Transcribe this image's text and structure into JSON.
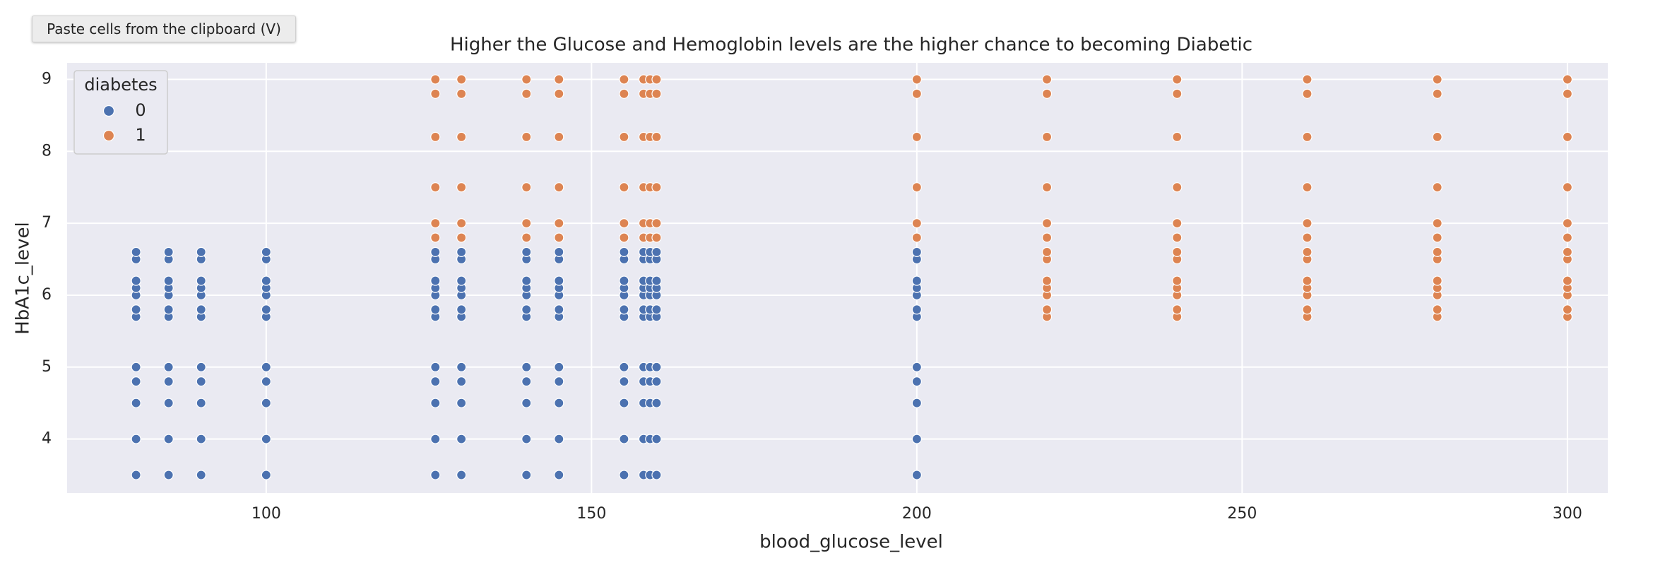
{
  "toolbar": {
    "button": "Paste cells from the clipboard (V)"
  },
  "chart_data": {
    "type": "scatter",
    "title": "Higher the Glucose and Hemoglobin levels are the higher chance to becoming Diabetic",
    "x_label": "blood_glucose_level",
    "y_label": "HbA1c_level",
    "legend_title": "diabetes",
    "legend_position": "upper-left",
    "grid": true,
    "xlim": [
      69.4,
      306.2
    ],
    "ylim": [
      3.25,
      9.23
    ],
    "xticks": [
      100,
      150,
      200,
      250,
      300
    ],
    "yticks": [
      4,
      5,
      6,
      7,
      8,
      9
    ],
    "series": [
      {
        "name": "0",
        "color": "#4c72b0",
        "x": [
          80,
          80,
          80,
          80,
          80,
          80,
          80,
          80,
          80,
          80,
          80,
          80,
          85,
          85,
          85,
          85,
          85,
          85,
          85,
          85,
          85,
          85,
          85,
          85,
          90,
          90,
          90,
          90,
          90,
          90,
          90,
          90,
          90,
          90,
          90,
          90,
          100,
          100,
          100,
          100,
          100,
          100,
          100,
          100,
          100,
          100,
          100,
          100,
          126,
          126,
          126,
          126,
          126,
          126,
          126,
          126,
          126,
          126,
          126,
          126,
          130,
          130,
          130,
          130,
          130,
          130,
          130,
          130,
          130,
          130,
          130,
          130,
          140,
          140,
          140,
          140,
          140,
          140,
          140,
          140,
          140,
          140,
          140,
          140,
          145,
          145,
          145,
          145,
          145,
          145,
          145,
          145,
          145,
          145,
          145,
          145,
          155,
          155,
          155,
          155,
          155,
          155,
          155,
          155,
          155,
          155,
          155,
          155,
          158,
          158,
          158,
          158,
          158,
          158,
          158,
          158,
          158,
          158,
          158,
          158,
          159,
          159,
          159,
          159,
          159,
          159,
          159,
          159,
          159,
          159,
          159,
          159,
          160,
          160,
          160,
          160,
          160,
          160,
          160,
          160,
          160,
          160,
          160,
          160,
          200,
          200,
          200,
          200,
          200,
          200,
          200,
          200,
          200,
          200,
          200,
          200
        ],
        "values": [
          3.5,
          4,
          4.5,
          4.8,
          5,
          5.7,
          5.8,
          6,
          6.1,
          6.2,
          6.5,
          6.6,
          3.5,
          4,
          4.5,
          4.8,
          5,
          5.7,
          5.8,
          6,
          6.1,
          6.2,
          6.5,
          6.6,
          3.5,
          4,
          4.5,
          4.8,
          5,
          5.7,
          5.8,
          6,
          6.1,
          6.2,
          6.5,
          6.6,
          3.5,
          4,
          4.5,
          4.8,
          5,
          5.7,
          5.8,
          6,
          6.1,
          6.2,
          6.5,
          6.6,
          3.5,
          4,
          4.5,
          4.8,
          5,
          5.7,
          5.8,
          6,
          6.1,
          6.2,
          6.5,
          6.6,
          3.5,
          4,
          4.5,
          4.8,
          5,
          5.7,
          5.8,
          6,
          6.1,
          6.2,
          6.5,
          6.6,
          3.5,
          4,
          4.5,
          4.8,
          5,
          5.7,
          5.8,
          6,
          6.1,
          6.2,
          6.5,
          6.6,
          3.5,
          4,
          4.5,
          4.8,
          5,
          5.7,
          5.8,
          6,
          6.1,
          6.2,
          6.5,
          6.6,
          3.5,
          4,
          4.5,
          4.8,
          5,
          5.7,
          5.8,
          6,
          6.1,
          6.2,
          6.5,
          6.6,
          3.5,
          4,
          4.5,
          4.8,
          5,
          5.7,
          5.8,
          6,
          6.1,
          6.2,
          6.5,
          6.6,
          3.5,
          4,
          4.5,
          4.8,
          5,
          5.7,
          5.8,
          6,
          6.1,
          6.2,
          6.5,
          6.6,
          3.5,
          4,
          4.5,
          4.8,
          5,
          5.7,
          5.8,
          6,
          6.1,
          6.2,
          6.5,
          6.6,
          3.5,
          4,
          4.5,
          4.8,
          5,
          5.7,
          5.8,
          6,
          6.1,
          6.2,
          6.5,
          6.6
        ]
      },
      {
        "name": "1",
        "color": "#dd8452",
        "x": [
          126,
          126,
          126,
          126,
          126,
          126,
          130,
          130,
          130,
          130,
          130,
          130,
          140,
          140,
          140,
          140,
          140,
          140,
          145,
          145,
          145,
          145,
          145,
          145,
          155,
          155,
          155,
          155,
          155,
          155,
          158,
          158,
          158,
          158,
          158,
          158,
          159,
          159,
          159,
          159,
          159,
          159,
          160,
          160,
          160,
          160,
          160,
          160,
          200,
          200,
          200,
          200,
          200,
          200,
          220,
          220,
          220,
          220,
          220,
          220,
          220,
          220,
          220,
          220,
          220,
          220,
          220,
          240,
          240,
          240,
          240,
          240,
          240,
          240,
          240,
          240,
          240,
          240,
          240,
          240,
          260,
          260,
          260,
          260,
          260,
          260,
          260,
          260,
          260,
          260,
          260,
          260,
          260,
          280,
          280,
          280,
          280,
          280,
          280,
          280,
          280,
          280,
          280,
          280,
          280,
          280,
          300,
          300,
          300,
          300,
          300,
          300,
          300,
          300,
          300,
          300,
          300,
          300,
          300
        ],
        "values": [
          6.8,
          7,
          7.5,
          8.2,
          8.8,
          9,
          6.8,
          7,
          7.5,
          8.2,
          8.8,
          9,
          6.8,
          7,
          7.5,
          8.2,
          8.8,
          9,
          6.8,
          7,
          7.5,
          8.2,
          8.8,
          9,
          6.8,
          7,
          7.5,
          8.2,
          8.8,
          9,
          6.8,
          7,
          7.5,
          8.2,
          8.8,
          9,
          6.8,
          7,
          7.5,
          8.2,
          8.8,
          9,
          6.8,
          7,
          7.5,
          8.2,
          8.8,
          9,
          6.8,
          7,
          7.5,
          8.2,
          8.8,
          9,
          5.7,
          5.8,
          6,
          6.1,
          6.2,
          6.5,
          6.6,
          6.8,
          7,
          7.5,
          8.2,
          8.8,
          9,
          5.7,
          5.8,
          6,
          6.1,
          6.2,
          6.5,
          6.6,
          6.8,
          7,
          7.5,
          8.2,
          8.8,
          9,
          5.7,
          5.8,
          6,
          6.1,
          6.2,
          6.5,
          6.6,
          6.8,
          7,
          7.5,
          8.2,
          8.8,
          9,
          5.7,
          5.8,
          6,
          6.1,
          6.2,
          6.5,
          6.6,
          6.8,
          7,
          7.5,
          8.2,
          8.8,
          9,
          5.7,
          5.8,
          6,
          6.1,
          6.2,
          6.5,
          6.6,
          6.8,
          7,
          7.5,
          8.2,
          8.8,
          9
        ]
      }
    ]
  }
}
